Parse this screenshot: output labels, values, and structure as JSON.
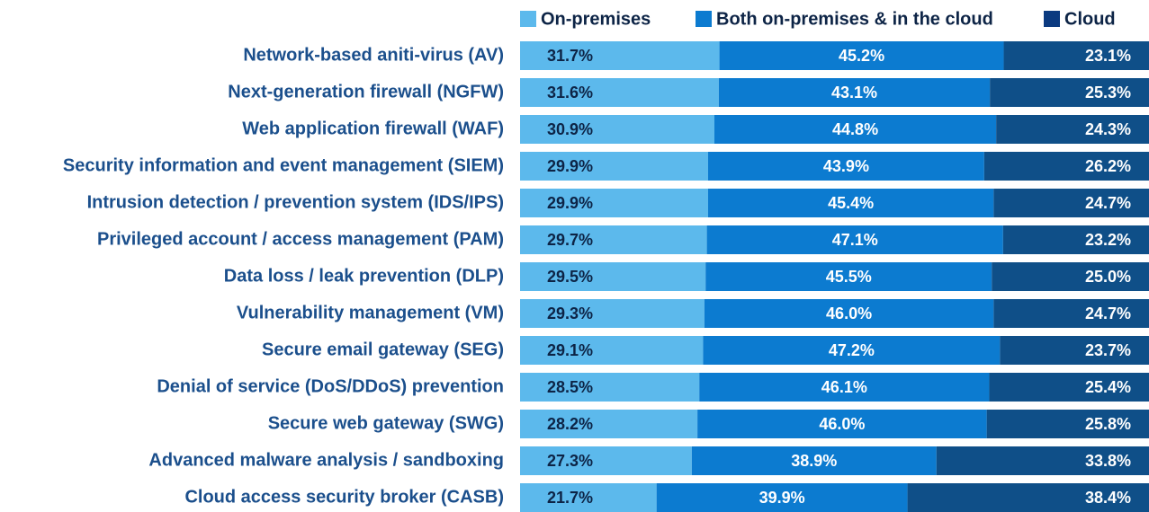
{
  "chart_data": {
    "type": "stacked-bar-horizontal",
    "categories": [
      "Network-based aniti-virus (AV)",
      "Next-generation firewall (NGFW)",
      "Web application firewall (WAF)",
      "Security information and event management (SIEM)",
      "Intrusion detection / prevention system (IDS/IPS)",
      "Privileged account / access management (PAM)",
      "Data loss / leak prevention (DLP)",
      "Vulnerability management (VM)",
      "Secure email gateway (SEG)",
      "Denial of service (DoS/DDoS) prevention",
      "Secure web gateway (SWG)",
      "Advanced malware analysis / sandboxing",
      "Cloud access security broker (CASB)"
    ],
    "series": [
      {
        "name": "On-premises",
        "color": "#5cb9ec",
        "values": [
          31.7,
          31.6,
          30.9,
          29.9,
          29.9,
          29.7,
          29.5,
          29.3,
          29.1,
          28.5,
          28.2,
          27.3,
          21.7
        ],
        "value_labels": [
          "31.7%",
          "31.6%",
          "30.9%",
          "29.9%",
          "29.9%",
          "29.7%",
          "29.5%",
          "29.3%",
          "29.1%",
          "28.5%",
          "28.2%",
          "27.3%",
          "21.7%"
        ]
      },
      {
        "name": "Both on-premises & in the cloud",
        "color": "#0c7bd0",
        "values": [
          45.2,
          43.1,
          44.8,
          43.9,
          45.4,
          47.1,
          45.5,
          46.0,
          47.2,
          46.1,
          46.0,
          38.9,
          39.9
        ],
        "value_labels": [
          "45.2%",
          "43.1%",
          "44.8%",
          "43.9%",
          "45.4%",
          "47.1%",
          "45.5%",
          "46.0%",
          "47.2%",
          "46.1%",
          "46.0%",
          "38.9%",
          "39.9%"
        ]
      },
      {
        "name": "Cloud",
        "color": "#0f4f88",
        "values": [
          23.1,
          25.3,
          24.3,
          26.2,
          24.7,
          23.2,
          25.0,
          24.7,
          23.7,
          25.4,
          25.8,
          33.8,
          38.4
        ],
        "value_labels": [
          "23.1%",
          "25.3%",
          "24.3%",
          "26.2%",
          "24.7%",
          "23.2%",
          "25.0%",
          "24.7%",
          "23.7%",
          "25.4%",
          "25.8%",
          "33.8%",
          "38.4%"
        ]
      }
    ]
  }
}
